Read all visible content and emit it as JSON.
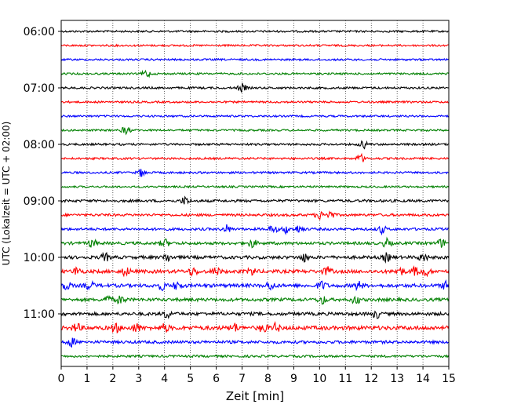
{
  "chart_data": {
    "type": "line",
    "title": "",
    "xlabel": "Zeit  [min]",
    "ylabel": "UTC (Lokalzeit = UTC + 02:00)",
    "xlim": [
      0,
      15
    ],
    "x_ticks": [
      "0",
      "1",
      "2",
      "3",
      "4",
      "5",
      "6",
      "7",
      "8",
      "9",
      "10",
      "11",
      "12",
      "13",
      "14",
      "15"
    ],
    "y_hour_labels": [
      "06:00",
      "07:00",
      "08:00",
      "09:00",
      "10:00",
      "11:00"
    ],
    "grid": "vertical dotted",
    "colors": [
      "#000000",
      "#ff0000",
      "#0000ff",
      "#008000"
    ],
    "traces": [
      {
        "start": "06:00",
        "color": "#000000",
        "amplitude": 1.2,
        "bursts": []
      },
      {
        "start": "06:15",
        "color": "#ff0000",
        "amplitude": 1.2,
        "bursts": []
      },
      {
        "start": "06:30",
        "color": "#0000ff",
        "amplitude": 1.2,
        "bursts": []
      },
      {
        "start": "06:45",
        "color": "#008000",
        "amplitude": 1.2,
        "bursts": [
          3.3
        ]
      },
      {
        "start": "07:00",
        "color": "#000000",
        "amplitude": 1.3,
        "bursts": [
          7.0
        ]
      },
      {
        "start": "07:15",
        "color": "#ff0000",
        "amplitude": 1.2,
        "bursts": []
      },
      {
        "start": "07:30",
        "color": "#0000ff",
        "amplitude": 1.2,
        "bursts": []
      },
      {
        "start": "07:45",
        "color": "#008000",
        "amplitude": 1.2,
        "bursts": [
          2.5
        ]
      },
      {
        "start": "08:00",
        "color": "#000000",
        "amplitude": 1.3,
        "bursts": [
          11.7
        ]
      },
      {
        "start": "08:15",
        "color": "#ff0000",
        "amplitude": 1.3,
        "bursts": [
          11.6
        ]
      },
      {
        "start": "08:30",
        "color": "#0000ff",
        "amplitude": 1.3,
        "bursts": [
          3.1
        ]
      },
      {
        "start": "08:45",
        "color": "#008000",
        "amplitude": 1.2,
        "bursts": []
      },
      {
        "start": "09:00",
        "color": "#000000",
        "amplitude": 1.6,
        "bursts": [
          4.8
        ]
      },
      {
        "start": "09:15",
        "color": "#ff0000",
        "amplitude": 1.6,
        "bursts": [
          10.0,
          10.4
        ]
      },
      {
        "start": "09:30",
        "color": "#0000ff",
        "amplitude": 1.6,
        "bursts": [
          6.4,
          8.2,
          8.7,
          9.2,
          12.4
        ]
      },
      {
        "start": "09:45",
        "color": "#008000",
        "amplitude": 1.8,
        "bursts": [
          1.2,
          4.0,
          7.4,
          12.6,
          14.7
        ]
      },
      {
        "start": "10:00",
        "color": "#000000",
        "amplitude": 2.0,
        "bursts": [
          1.7,
          4.1,
          9.4,
          12.6,
          14.0
        ]
      },
      {
        "start": "10:15",
        "color": "#ff0000",
        "amplitude": 2.2,
        "bursts": [
          0.6,
          2.5,
          5.1,
          6.0,
          7.4,
          10.3,
          13.1,
          13.7,
          14.1
        ]
      },
      {
        "start": "10:30",
        "color": "#0000ff",
        "amplitude": 2.2,
        "bursts": [
          0.2,
          1.1,
          3.9,
          4.5,
          8.1,
          10.1,
          11.5,
          14.9
        ]
      },
      {
        "start": "10:45",
        "color": "#008000",
        "amplitude": 2.0,
        "bursts": [
          1.8,
          2.3,
          10.1,
          11.4
        ]
      },
      {
        "start": "11:00",
        "color": "#000000",
        "amplitude": 2.0,
        "bursts": [
          4.1,
          12.2
        ]
      },
      {
        "start": "11:15",
        "color": "#ff0000",
        "amplitude": 2.5,
        "bursts": [
          0.6,
          2.1,
          2.9,
          4.0,
          6.7,
          7.8,
          8.3
        ]
      },
      {
        "start": "11:30",
        "color": "#0000ff",
        "amplitude": 1.8,
        "bursts": [
          0.4
        ]
      },
      {
        "start": "11:45",
        "color": "#008000",
        "amplitude": 1.4,
        "bursts": []
      }
    ]
  }
}
